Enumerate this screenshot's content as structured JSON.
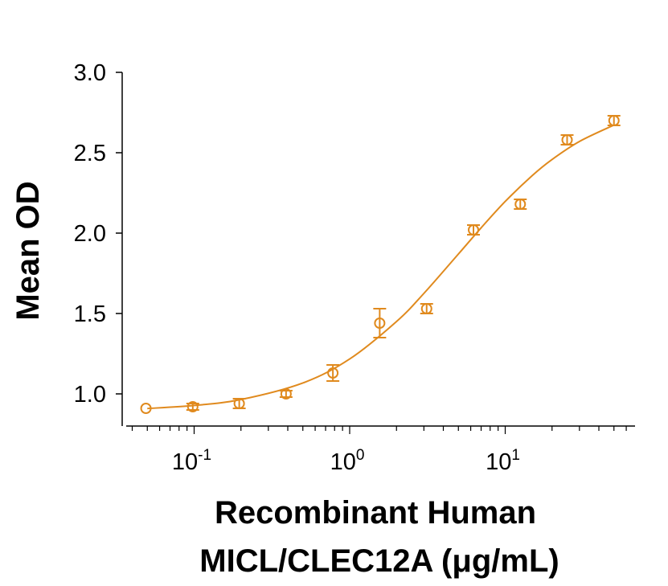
{
  "chart_data": {
    "type": "scatter",
    "title": "",
    "xlabel_line1": "Recombinant Human",
    "xlabel_line2": "MICL/CLEC12A (μg/mL)",
    "ylabel": "Mean OD",
    "xscale": "log",
    "xlim": [
      0.037,
      69
    ],
    "ylim": [
      0.8,
      3.0
    ],
    "yticks": [
      1.0,
      1.5,
      2.0,
      2.5,
      3.0
    ],
    "ytick_labels": [
      "1.0",
      "1.5",
      "2.0",
      "2.5",
      "3.0"
    ],
    "xticks": [
      0.1,
      1,
      10
    ],
    "xtick_labels": [
      {
        "base": "10",
        "exp": "-1"
      },
      {
        "base": "10",
        "exp": "0"
      },
      {
        "base": "10",
        "exp": "1"
      }
    ],
    "grid": false,
    "color": "#E08A1E",
    "points": [
      {
        "x": 0.049,
        "y": 0.91,
        "err": 0.0
      },
      {
        "x": 0.098,
        "y": 0.92,
        "err": 0.02
      },
      {
        "x": 0.195,
        "y": 0.94,
        "err": 0.03
      },
      {
        "x": 0.39,
        "y": 1.0,
        "err": 0.02
      },
      {
        "x": 0.78,
        "y": 1.13,
        "err": 0.05
      },
      {
        "x": 1.56,
        "y": 1.44,
        "err": 0.09
      },
      {
        "x": 3.125,
        "y": 1.53,
        "err": 0.03
      },
      {
        "x": 6.25,
        "y": 2.02,
        "err": 0.03
      },
      {
        "x": 12.5,
        "y": 2.18,
        "err": 0.03
      },
      {
        "x": 25,
        "y": 2.58,
        "err": 0.03
      },
      {
        "x": 50,
        "y": 2.7,
        "err": 0.03
      }
    ],
    "fit_curve": [
      [
        0.05,
        0.909
      ],
      [
        0.1,
        0.928
      ],
      [
        0.2,
        0.965
      ],
      [
        0.5,
        1.068
      ],
      [
        1,
        1.217
      ],
      [
        2,
        1.45
      ],
      [
        3,
        1.625
      ],
      [
        5,
        1.87
      ],
      [
        7,
        2.033
      ],
      [
        10,
        2.197
      ],
      [
        15,
        2.36
      ],
      [
        20,
        2.458
      ],
      [
        30,
        2.57
      ],
      [
        50,
        2.672
      ]
    ]
  }
}
